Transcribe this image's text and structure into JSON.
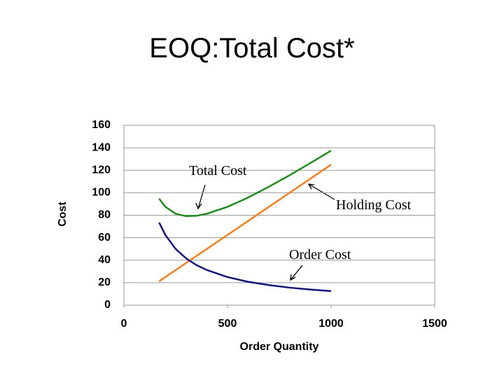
{
  "chart_data": {
    "type": "line",
    "title": "EOQ:Total Cost*",
    "x_label": "Order Quantity",
    "y_label": "Cost",
    "x": [
      170,
      200,
      250,
      300,
      350,
      400,
      500,
      600,
      700,
      800,
      900,
      1000
    ],
    "series": [
      {
        "name": "Total Cost",
        "color": "#1f8a1f",
        "values": [
          94.8,
          87.5,
          81.3,
          79.2,
          79.5,
          81.3,
          87.5,
          95.8,
          105.4,
          115.6,
          126.4,
          137.5
        ]
      },
      {
        "name": "Holding Cost",
        "color": "#f08020",
        "values": [
          21.3,
          25,
          31.3,
          37.5,
          43.8,
          50,
          62.5,
          75,
          87.5,
          100,
          112.5,
          125
        ]
      },
      {
        "name": "Order Cost",
        "color": "#14147a",
        "values": [
          73.5,
          62.5,
          50,
          41.7,
          35.7,
          31.3,
          25,
          20.8,
          17.9,
          15.6,
          13.9,
          12.5
        ]
      }
    ],
    "xlim": [
      0,
      1500
    ],
    "xticks": [
      0,
      500,
      1000,
      1500
    ],
    "ylim": [
      0,
      160
    ],
    "yticks": [
      0,
      20,
      40,
      60,
      80,
      100,
      120,
      140,
      160
    ],
    "grid": true
  }
}
